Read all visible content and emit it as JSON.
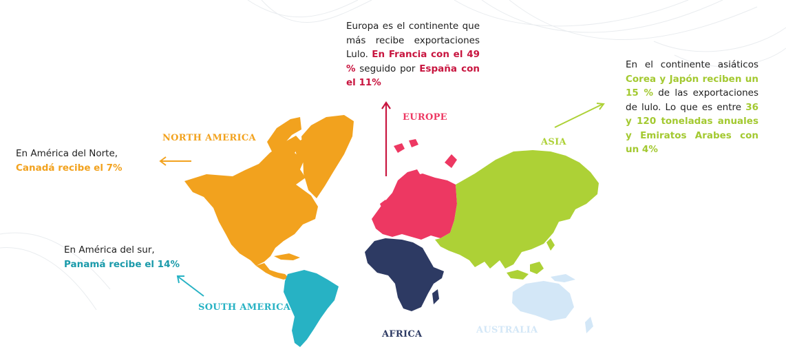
{
  "colors": {
    "north_america": "#f2a21e",
    "south_america": "#27b2c4",
    "europe": "#ed3862",
    "africa": "#2d3a63",
    "asia": "#add136",
    "australia": "#d3e7f7",
    "europe_text": "#c8153f"
  },
  "labels": {
    "north_america": "NORTH AMERICA",
    "south_america": "SOUTH AMERICA",
    "europe": "EUROPE",
    "africa": "AFRICA",
    "asia": "ASIA",
    "australia": "AUSTRALIA"
  },
  "notes": {
    "north": {
      "line1": "En América del Norte,",
      "highlight": "Canadá recibe el 7%"
    },
    "south": {
      "line1": "En América del sur,",
      "highlight": "Panamá recibe el 14%"
    },
    "europe": {
      "text1": "Europa es el continente que más recibe exportaciones Lulo. ",
      "highlight1": "En Francia con el 49 %",
      "text2": " seguido por ",
      "highlight2": "España con el 11%"
    },
    "asia": {
      "text1": "En el continente asiáticos ",
      "highlight1": "Corea y Japón reciben un 15 %",
      "text2": " de las exportaciones de lulo. Lo que es entre ",
      "highlight2": "36 y 120 toneladas anuales y Emiratos Arabes con un 4%"
    }
  }
}
